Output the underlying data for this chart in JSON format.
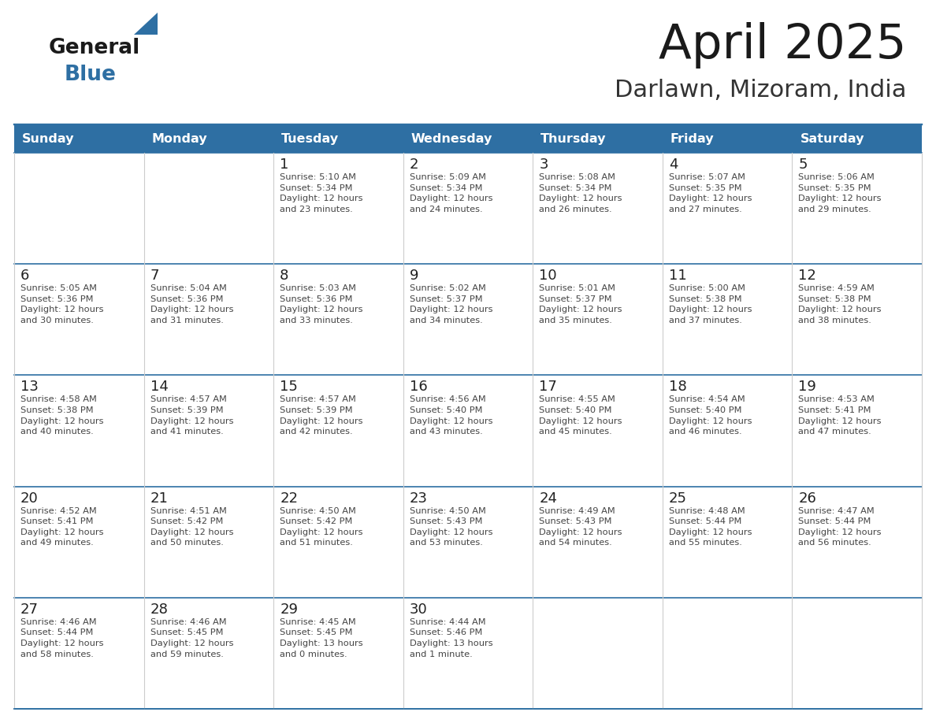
{
  "title": "April 2025",
  "subtitle": "Darlawn, Mizoram, India",
  "days_of_week": [
    "Sunday",
    "Monday",
    "Tuesday",
    "Wednesday",
    "Thursday",
    "Friday",
    "Saturday"
  ],
  "header_bg": "#2E6FA3",
  "header_text": "#FFFFFF",
  "cell_bg": "#FFFFFF",
  "row_separator_color": "#2E6FA3",
  "text_color": "#444444",
  "day_number_color": "#222222",
  "info_text_color": "#444444",
  "general_color": "#1a1a1a",
  "blue_color": "#2E6FA3",
  "calendar_data": [
    [
      {
        "day": "",
        "info": ""
      },
      {
        "day": "",
        "info": ""
      },
      {
        "day": "1",
        "info": "Sunrise: 5:10 AM\nSunset: 5:34 PM\nDaylight: 12 hours\nand 23 minutes."
      },
      {
        "day": "2",
        "info": "Sunrise: 5:09 AM\nSunset: 5:34 PM\nDaylight: 12 hours\nand 24 minutes."
      },
      {
        "day": "3",
        "info": "Sunrise: 5:08 AM\nSunset: 5:34 PM\nDaylight: 12 hours\nand 26 minutes."
      },
      {
        "day": "4",
        "info": "Sunrise: 5:07 AM\nSunset: 5:35 PM\nDaylight: 12 hours\nand 27 minutes."
      },
      {
        "day": "5",
        "info": "Sunrise: 5:06 AM\nSunset: 5:35 PM\nDaylight: 12 hours\nand 29 minutes."
      }
    ],
    [
      {
        "day": "6",
        "info": "Sunrise: 5:05 AM\nSunset: 5:36 PM\nDaylight: 12 hours\nand 30 minutes."
      },
      {
        "day": "7",
        "info": "Sunrise: 5:04 AM\nSunset: 5:36 PM\nDaylight: 12 hours\nand 31 minutes."
      },
      {
        "day": "8",
        "info": "Sunrise: 5:03 AM\nSunset: 5:36 PM\nDaylight: 12 hours\nand 33 minutes."
      },
      {
        "day": "9",
        "info": "Sunrise: 5:02 AM\nSunset: 5:37 PM\nDaylight: 12 hours\nand 34 minutes."
      },
      {
        "day": "10",
        "info": "Sunrise: 5:01 AM\nSunset: 5:37 PM\nDaylight: 12 hours\nand 35 minutes."
      },
      {
        "day": "11",
        "info": "Sunrise: 5:00 AM\nSunset: 5:38 PM\nDaylight: 12 hours\nand 37 minutes."
      },
      {
        "day": "12",
        "info": "Sunrise: 4:59 AM\nSunset: 5:38 PM\nDaylight: 12 hours\nand 38 minutes."
      }
    ],
    [
      {
        "day": "13",
        "info": "Sunrise: 4:58 AM\nSunset: 5:38 PM\nDaylight: 12 hours\nand 40 minutes."
      },
      {
        "day": "14",
        "info": "Sunrise: 4:57 AM\nSunset: 5:39 PM\nDaylight: 12 hours\nand 41 minutes."
      },
      {
        "day": "15",
        "info": "Sunrise: 4:57 AM\nSunset: 5:39 PM\nDaylight: 12 hours\nand 42 minutes."
      },
      {
        "day": "16",
        "info": "Sunrise: 4:56 AM\nSunset: 5:40 PM\nDaylight: 12 hours\nand 43 minutes."
      },
      {
        "day": "17",
        "info": "Sunrise: 4:55 AM\nSunset: 5:40 PM\nDaylight: 12 hours\nand 45 minutes."
      },
      {
        "day": "18",
        "info": "Sunrise: 4:54 AM\nSunset: 5:40 PM\nDaylight: 12 hours\nand 46 minutes."
      },
      {
        "day": "19",
        "info": "Sunrise: 4:53 AM\nSunset: 5:41 PM\nDaylight: 12 hours\nand 47 minutes."
      }
    ],
    [
      {
        "day": "20",
        "info": "Sunrise: 4:52 AM\nSunset: 5:41 PM\nDaylight: 12 hours\nand 49 minutes."
      },
      {
        "day": "21",
        "info": "Sunrise: 4:51 AM\nSunset: 5:42 PM\nDaylight: 12 hours\nand 50 minutes."
      },
      {
        "day": "22",
        "info": "Sunrise: 4:50 AM\nSunset: 5:42 PM\nDaylight: 12 hours\nand 51 minutes."
      },
      {
        "day": "23",
        "info": "Sunrise: 4:50 AM\nSunset: 5:43 PM\nDaylight: 12 hours\nand 53 minutes."
      },
      {
        "day": "24",
        "info": "Sunrise: 4:49 AM\nSunset: 5:43 PM\nDaylight: 12 hours\nand 54 minutes."
      },
      {
        "day": "25",
        "info": "Sunrise: 4:48 AM\nSunset: 5:44 PM\nDaylight: 12 hours\nand 55 minutes."
      },
      {
        "day": "26",
        "info": "Sunrise: 4:47 AM\nSunset: 5:44 PM\nDaylight: 12 hours\nand 56 minutes."
      }
    ],
    [
      {
        "day": "27",
        "info": "Sunrise: 4:46 AM\nSunset: 5:44 PM\nDaylight: 12 hours\nand 58 minutes."
      },
      {
        "day": "28",
        "info": "Sunrise: 4:46 AM\nSunset: 5:45 PM\nDaylight: 12 hours\nand 59 minutes."
      },
      {
        "day": "29",
        "info": "Sunrise: 4:45 AM\nSunset: 5:45 PM\nDaylight: 13 hours\nand 0 minutes."
      },
      {
        "day": "30",
        "info": "Sunrise: 4:44 AM\nSunset: 5:46 PM\nDaylight: 13 hours\nand 1 minute."
      },
      {
        "day": "",
        "info": ""
      },
      {
        "day": "",
        "info": ""
      },
      {
        "day": "",
        "info": ""
      }
    ]
  ]
}
